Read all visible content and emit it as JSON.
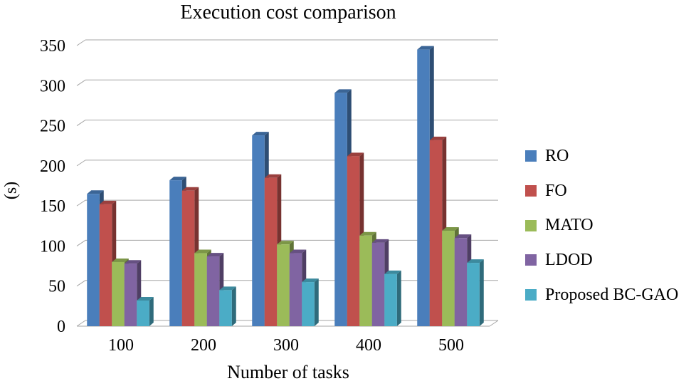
{
  "chart_data": {
    "type": "bar",
    "title": "Execution cost comparison",
    "xlabel": "Number of tasks",
    "ylabel": "(s)",
    "ylim": [
      0,
      350
    ],
    "yticks": [
      0,
      50,
      100,
      150,
      200,
      250,
      300,
      350
    ],
    "grid": true,
    "legend_position": "right",
    "categories": [
      "100",
      "200",
      "300",
      "400",
      "500"
    ],
    "series": [
      {
        "name": "RO",
        "color": "#4a7ebb",
        "values": [
          165,
          182,
          238,
          291,
          345
        ]
      },
      {
        "name": "FO",
        "color": "#c0504d",
        "values": [
          152,
          169,
          185,
          212,
          232
        ]
      },
      {
        "name": "MATO",
        "color": "#9bbb59",
        "values": [
          80,
          91,
          102,
          113,
          119
        ]
      },
      {
        "name": "LDOD",
        "color": "#8064a2",
        "values": [
          78,
          87,
          91,
          104,
          110
        ]
      },
      {
        "name": "Proposed BC-GAO",
        "color": "#4bacc6",
        "values": [
          32,
          45,
          55,
          65,
          79
        ]
      }
    ]
  }
}
